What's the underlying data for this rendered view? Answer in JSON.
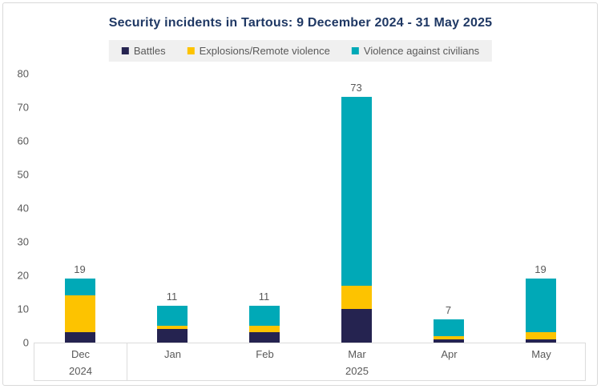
{
  "title": "Security incidents in Tartous: 9 December 2024 - 31 May 2025",
  "legend": {
    "items": [
      {
        "label": "Battles",
        "color": "#252350"
      },
      {
        "label": "Explosions/Remote violence",
        "color": "#FDC300"
      },
      {
        "label": "Violence against civilians",
        "color": "#00A9B7"
      }
    ]
  },
  "chart_data": {
    "type": "bar",
    "stacked": true,
    "title": "Security incidents in Tartous: 9 December 2024 - 31 May 2025",
    "categories": [
      "Dec",
      "Jan",
      "Feb",
      "Mar",
      "Apr",
      "May"
    ],
    "year_groups": [
      {
        "label": "2024",
        "months": [
          "Dec"
        ]
      },
      {
        "label": "2025",
        "months": [
          "Jan",
          "Feb",
          "Mar",
          "Apr",
          "May"
        ]
      }
    ],
    "series": [
      {
        "name": "Battles",
        "color": "#252350",
        "values": [
          3,
          4,
          3,
          10,
          1,
          1
        ]
      },
      {
        "name": "Explosions/Remote violence",
        "color": "#FDC300",
        "values": [
          11,
          1,
          2,
          7,
          1,
          2
        ]
      },
      {
        "name": "Violence against civilians",
        "color": "#00A9B7",
        "values": [
          5,
          6,
          6,
          56,
          5,
          16
        ]
      }
    ],
    "totals": [
      19,
      11,
      11,
      73,
      7,
      19
    ],
    "xlabel": "",
    "ylabel": "",
    "ylim": [
      0,
      80
    ],
    "yticks": [
      0,
      10,
      20,
      30,
      40,
      50,
      60,
      70,
      80
    ],
    "grid": false,
    "legend_position": "top"
  },
  "colors": {
    "title": "#1F3864",
    "axis_text": "#595959",
    "legend_bg": "#F0F0F0",
    "frame_border": "#D9D9D9"
  }
}
